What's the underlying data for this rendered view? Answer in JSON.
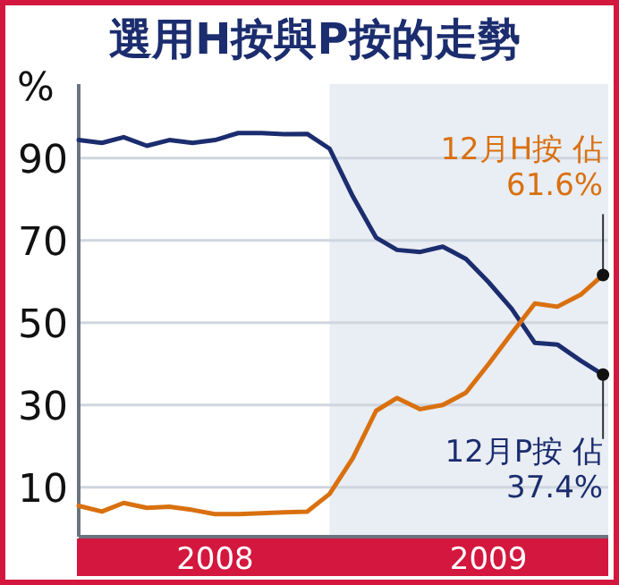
{
  "chart_data": {
    "type": "line",
    "title": "選用H按與P按的走勢",
    "ylabel": "%",
    "x": [
      "2008-01",
      "2008-02",
      "2008-03",
      "2008-04",
      "2008-05",
      "2008-06",
      "2008-07",
      "2008-08",
      "2008-09",
      "2008-10",
      "2008-11",
      "2008-12",
      "2009-01",
      "2009-02",
      "2009-03",
      "2009-04",
      "2009-05",
      "2009-06",
      "2009-07",
      "2009-08",
      "2009-09",
      "2009-10",
      "2009-11",
      "2009-12"
    ],
    "series": [
      {
        "color": "#1b2d6e",
        "values": [
          94.4,
          93.7,
          95.1,
          93,
          94.4,
          93.7,
          94.4,
          96.1,
          96.1,
          95.8,
          95.9,
          92.3,
          80.7,
          70.7,
          67.7,
          67.2,
          68.5,
          65.5,
          59.9,
          53.4,
          45.1,
          44.7,
          40.8,
          37.4
        ]
      },
      {
        "color": "#d9700f",
        "values": [
          5.5,
          4.1,
          6.2,
          5,
          5.3,
          4.5,
          3.5,
          3.5,
          3.7,
          3.9,
          4.1,
          8.4,
          17.1,
          28.6,
          31.7,
          29,
          30,
          33,
          39.9,
          47.4,
          54.7,
          53.9,
          56.8,
          61.6
        ]
      }
    ],
    "xlim": [
      "2008-01",
      "2009-12-08"
    ],
    "xticks": [
      {
        "value": "2008-07",
        "label": "2008"
      },
      {
        "value": "2009-07",
        "label": "2009"
      }
    ],
    "ylim": [
      -2,
      108
    ],
    "yticks": [
      10,
      30,
      50,
      70,
      90
    ],
    "grid": "y",
    "bands": [
      {
        "axis": "x",
        "from": "2008-12",
        "to": "2009-12-08",
        "color": "#e9edf4"
      }
    ],
    "annotations": [
      {
        "text": "12月H按 佔 61.6%",
        "x": "2009-12",
        "y": 61.6
      },
      {
        "text": "12月P按 佔 37.4%",
        "x": "2009-12",
        "y": 37.4
      }
    ]
  }
}
